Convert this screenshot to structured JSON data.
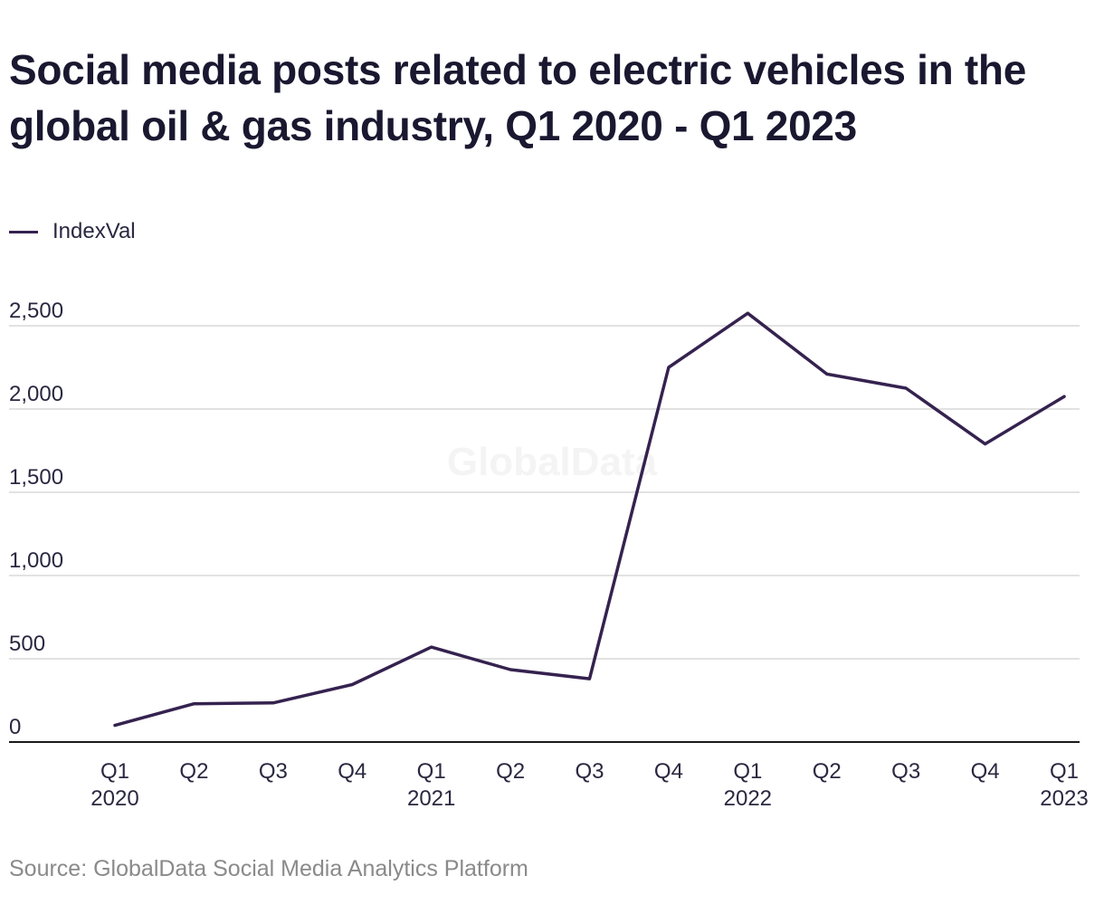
{
  "title": "Social media posts related to electric vehicles in the global oil & gas industry, Q1 2020 - Q1 2023",
  "source": "Source: GlobalData Social Media Analytics Platform",
  "watermark": "GlobalData",
  "colors": {
    "line": "#35224f",
    "grid": "#d9d9d9",
    "axis": "#1a1a1a",
    "text": "#2a2840",
    "source": "#8a8a8a"
  },
  "chart_data": {
    "type": "line",
    "title": "Social media posts related to electric vehicles in the global oil & gas industry, Q1 2020 - Q1 2023",
    "xlabel": "",
    "ylabel": "",
    "ylim": [
      0,
      2500
    ],
    "yticks": [
      0,
      500,
      1000,
      1500,
      2000,
      2500
    ],
    "ytick_labels": [
      "0",
      "500",
      "1,000",
      "1,500",
      "2,000",
      "2,500"
    ],
    "grid": true,
    "legend": "top-left",
    "categories": [
      {
        "q": "Q1",
        "year": "2020"
      },
      {
        "q": "Q2",
        "year": ""
      },
      {
        "q": "Q3",
        "year": ""
      },
      {
        "q": "Q4",
        "year": ""
      },
      {
        "q": "Q1",
        "year": "2021"
      },
      {
        "q": "Q2",
        "year": ""
      },
      {
        "q": "Q3",
        "year": ""
      },
      {
        "q": "Q4",
        "year": ""
      },
      {
        "q": "Q1",
        "year": "2022"
      },
      {
        "q": "Q2",
        "year": ""
      },
      {
        "q": "Q3",
        "year": ""
      },
      {
        "q": "Q4",
        "year": ""
      },
      {
        "q": "Q1",
        "year": "2023"
      }
    ],
    "series": [
      {
        "name": "IndexVal",
        "values": [
          100,
          230,
          235,
          345,
          570,
          435,
          380,
          2250,
          2575,
          2210,
          2125,
          1790,
          2075
        ]
      }
    ]
  }
}
